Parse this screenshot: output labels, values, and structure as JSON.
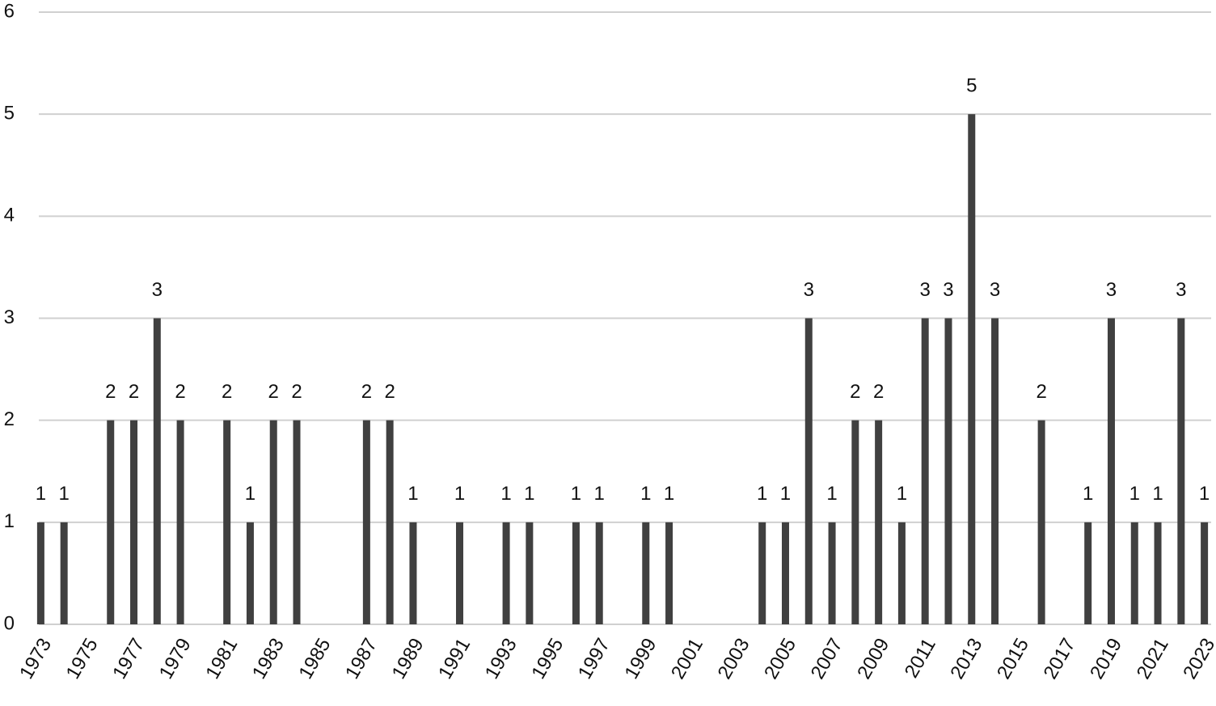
{
  "chart_data": {
    "type": "bar",
    "categories": [
      "1973",
      null,
      "1975",
      null,
      "1977",
      null,
      "1979",
      null,
      "1981",
      null,
      "1983",
      null,
      "1985",
      null,
      "1987",
      null,
      "1989",
      null,
      "1991",
      null,
      "1993",
      null,
      "1995",
      null,
      "1997",
      null,
      "1999",
      null,
      "2001",
      null,
      "2003",
      null,
      "2005",
      null,
      "2007",
      null,
      "2009",
      null,
      "2011",
      null,
      "2013",
      null,
      "2015",
      null,
      "2017",
      null,
      "2019",
      null,
      "2021",
      null,
      "2023"
    ],
    "values": [
      1,
      1,
      null,
      2,
      2,
      3,
      2,
      null,
      2,
      1,
      2,
      2,
      null,
      null,
      2,
      2,
      1,
      null,
      1,
      null,
      1,
      1,
      null,
      1,
      1,
      null,
      1,
      1,
      null,
      null,
      null,
      1,
      1,
      3,
      1,
      2,
      2,
      1,
      3,
      3,
      5,
      3,
      null,
      2,
      null,
      1,
      3,
      1,
      1,
      3,
      1
    ],
    "color": "#404040",
    "ylim": [
      0,
      6
    ],
    "yticks": [
      0,
      1,
      2,
      3,
      4,
      5,
      6
    ],
    "grid": true
  }
}
